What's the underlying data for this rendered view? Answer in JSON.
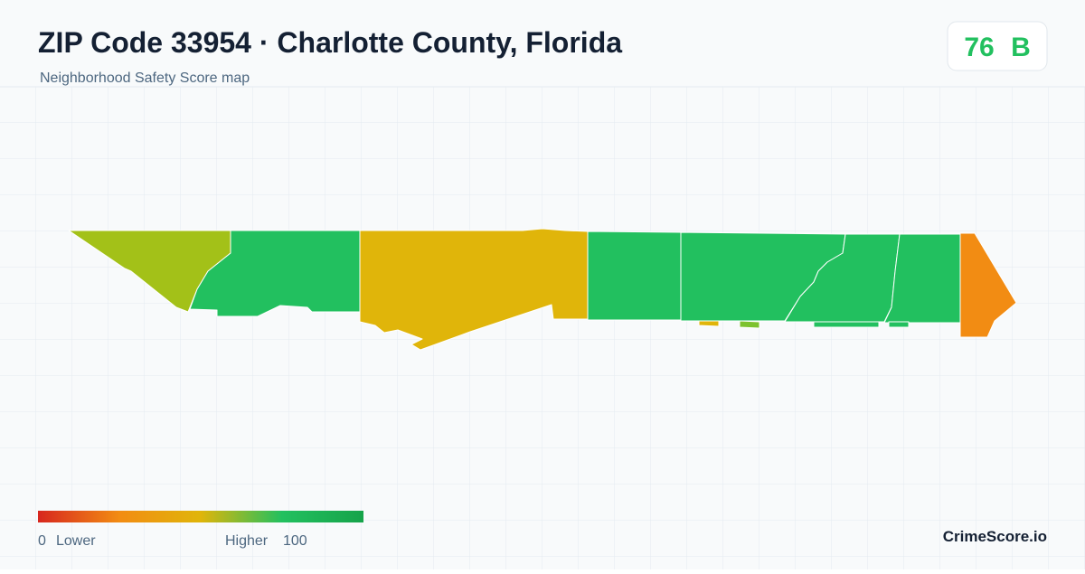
{
  "header": {
    "title": "ZIP Code 33954 · Charlotte County, Florida",
    "subtitle": "Neighborhood Safety Score map"
  },
  "score": {
    "value": 76,
    "grade": "B"
  },
  "legend": {
    "min": "0",
    "min_label": "Lower",
    "max_label": "Higher",
    "max": "100"
  },
  "footer": {
    "brand": "CrimeScore.io"
  }
}
